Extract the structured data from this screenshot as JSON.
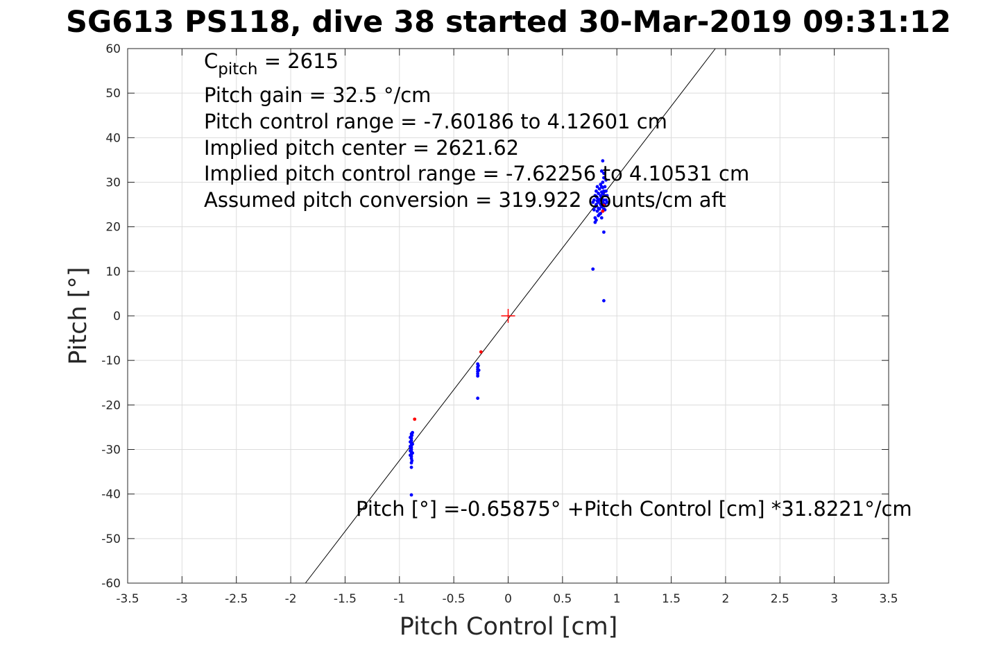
{
  "chart_data": {
    "type": "scatter",
    "title": "SG613 PS118, dive 38 started 30-Mar-2019 09:31:12",
    "xlabel": "Pitch Control [cm]",
    "ylabel": "Pitch [°]",
    "xlim": [
      -3.5,
      3.5
    ],
    "ylim": [
      -60,
      60
    ],
    "xticks": [
      -3.5,
      -3,
      -2.5,
      -2,
      -1.5,
      -1,
      -0.5,
      0,
      0.5,
      1,
      1.5,
      2,
      2.5,
      3,
      3.5
    ],
    "yticks": [
      -60,
      -50,
      -40,
      -30,
      -20,
      -10,
      0,
      10,
      20,
      30,
      40,
      50,
      60
    ],
    "grid": true,
    "annotations": {
      "cpitch_prefix": "C",
      "cpitch_sub": "pitch",
      "cpitch_suffix": " = 2615",
      "lines": [
        "Pitch gain = 32.5 °/cm",
        "Pitch control range = -7.60186 to 4.12601 cm",
        "Implied pitch center = 2621.62",
        "Implied pitch control range = -7.62256 to 4.10531 cm",
        "Assumed pitch conversion = 319.922 counts/cm aft"
      ],
      "fit_equation": "Pitch [°] =-0.65875° +Pitch Control [cm] *31.8221°/cm"
    },
    "fit_line": {
      "intercept": -0.65875,
      "slope": 31.8221,
      "color": "#000000"
    },
    "center_marker": {
      "x": 0,
      "y": 0,
      "color": "#ff0000"
    },
    "series": [
      {
        "color": "#0000ff",
        "points": [
          [
            -0.89,
            -26.5
          ],
          [
            -0.89,
            -27
          ],
          [
            -0.89,
            -27.5
          ],
          [
            -0.89,
            -28
          ],
          [
            -0.89,
            -28.5
          ],
          [
            -0.89,
            -29
          ],
          [
            -0.89,
            -29.5
          ],
          [
            -0.89,
            -30
          ],
          [
            -0.89,
            -30.5
          ],
          [
            -0.89,
            -31
          ],
          [
            -0.89,
            -31.5
          ],
          [
            -0.89,
            -32
          ],
          [
            -0.89,
            -33
          ],
          [
            -0.89,
            -34
          ],
          [
            -0.9,
            -27.3
          ],
          [
            -0.9,
            -28.3
          ],
          [
            -0.9,
            -29.3
          ],
          [
            -0.9,
            -30.3
          ],
          [
            -0.9,
            -31.3
          ],
          [
            -0.88,
            -26.2
          ],
          [
            -0.88,
            -28.8
          ],
          [
            -0.88,
            -30.8
          ],
          [
            -0.885,
            -32.5
          ],
          [
            -0.895,
            -29.8
          ],
          [
            -0.885,
            -26.8
          ],
          [
            -0.89,
            -40.2
          ],
          [
            -0.28,
            -10.8
          ],
          [
            -0.28,
            -11.5
          ],
          [
            -0.28,
            -12
          ],
          [
            -0.28,
            -12.5
          ],
          [
            -0.28,
            -13
          ],
          [
            -0.28,
            -13.5
          ],
          [
            -0.27,
            -12.2
          ],
          [
            -0.275,
            -11.2
          ],
          [
            -0.28,
            -18.5
          ],
          [
            0.78,
            25.5
          ],
          [
            0.79,
            26
          ],
          [
            0.8,
            24.5
          ],
          [
            0.8,
            27
          ],
          [
            0.81,
            25
          ],
          [
            0.81,
            28
          ],
          [
            0.82,
            23.5
          ],
          [
            0.82,
            26.5
          ],
          [
            0.83,
            22.5
          ],
          [
            0.83,
            25.5
          ],
          [
            0.83,
            27.5
          ],
          [
            0.84,
            24
          ],
          [
            0.84,
            26
          ],
          [
            0.84,
            28.5
          ],
          [
            0.85,
            23
          ],
          [
            0.85,
            25
          ],
          [
            0.85,
            27
          ],
          [
            0.86,
            22
          ],
          [
            0.86,
            24.5
          ],
          [
            0.86,
            26.5
          ],
          [
            0.86,
            29
          ],
          [
            0.87,
            23.5
          ],
          [
            0.87,
            25.5
          ],
          [
            0.87,
            27.5
          ],
          [
            0.87,
            30
          ],
          [
            0.88,
            24
          ],
          [
            0.88,
            26
          ],
          [
            0.88,
            28
          ],
          [
            0.89,
            25
          ],
          [
            0.89,
            27
          ],
          [
            0.89,
            29
          ],
          [
            0.9,
            26
          ],
          [
            0.9,
            28
          ],
          [
            0.91,
            27
          ],
          [
            0.79,
            23.8
          ],
          [
            0.8,
            22
          ],
          [
            0.81,
            21.5
          ],
          [
            0.8,
            21
          ],
          [
            0.82,
            29
          ],
          [
            0.85,
            29.5
          ],
          [
            0.88,
            32
          ],
          [
            0.87,
            34.8
          ],
          [
            0.86,
            32.5
          ],
          [
            0.88,
            31
          ],
          [
            0.9,
            30.5
          ],
          [
            0.91,
            25.5
          ],
          [
            0.83,
            24.2
          ],
          [
            0.84,
            22.8
          ],
          [
            0.85,
            26.2
          ],
          [
            0.86,
            27.8
          ],
          [
            0.87,
            28.8
          ],
          [
            0.88,
            25.2
          ],
          [
            0.89,
            23.8
          ],
          [
            0.82,
            25.8
          ],
          [
            0.81,
            26.8
          ],
          [
            0.88,
            18.8
          ],
          [
            0.78,
            10.5
          ],
          [
            0.88,
            3.4
          ]
        ]
      },
      {
        "color": "#ff0000",
        "points": [
          [
            -0.86,
            -23.2
          ],
          [
            -0.25,
            -8.1
          ],
          [
            0.87,
            23.5
          ],
          [
            0.88,
            24.8
          ]
        ]
      }
    ]
  }
}
